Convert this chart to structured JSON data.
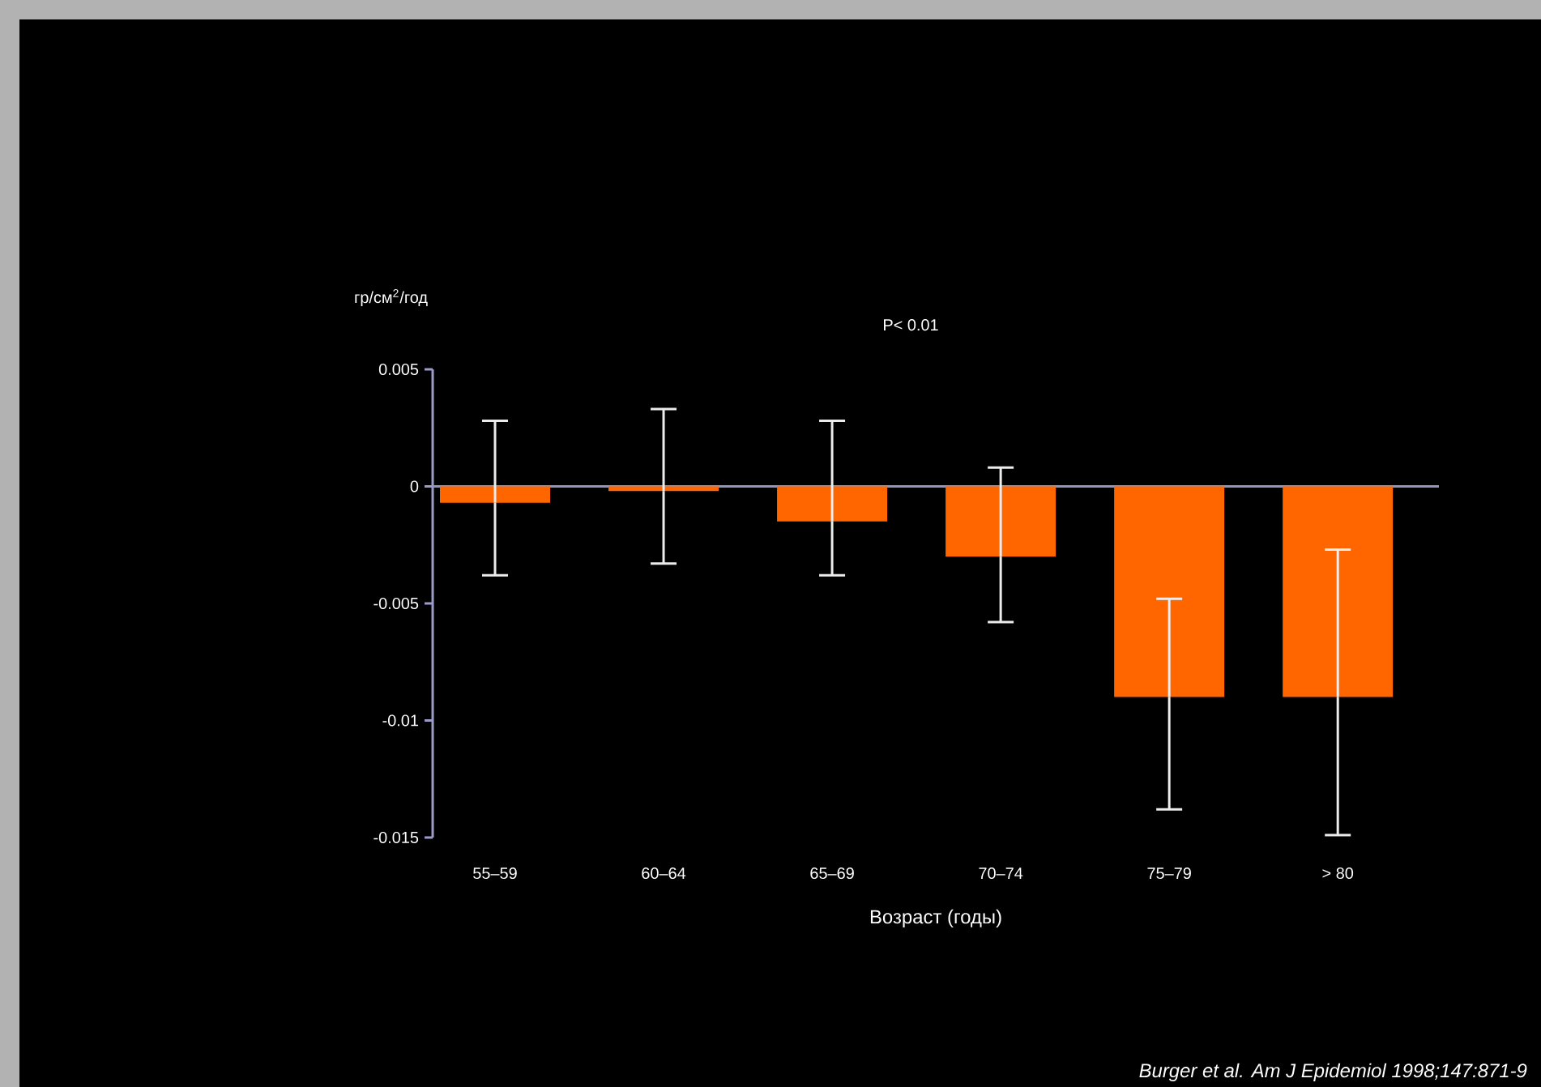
{
  "chart_data": {
    "type": "bar",
    "categories": [
      "55–59",
      "60–64",
      "65–69",
      "70–74",
      "75–79",
      "> 80"
    ],
    "values": [
      -0.0007,
      -0.0002,
      -0.0015,
      -0.003,
      -0.009,
      -0.009
    ],
    "errors": [
      [
        -0.0038,
        0.0028
      ],
      [
        -0.0033,
        0.0033
      ],
      [
        -0.0038,
        0.0028
      ],
      [
        -0.0058,
        0.0008
      ],
      [
        -0.0138,
        -0.0048
      ],
      [
        -0.0149,
        -0.0027
      ]
    ],
    "color": "#ff6600",
    "ylim": [
      -0.015,
      0.005
    ],
    "yticks": [
      0.005,
      0,
      -0.005,
      -0.01,
      -0.015
    ],
    "ylabel": "гр/см$^{2}$/год",
    "xlabel": "Возраст (годы)",
    "annotations": [
      "P< 0.01",
      "Burger et al. Am J Epidemiol 1998;147:871-9"
    ]
  }
}
